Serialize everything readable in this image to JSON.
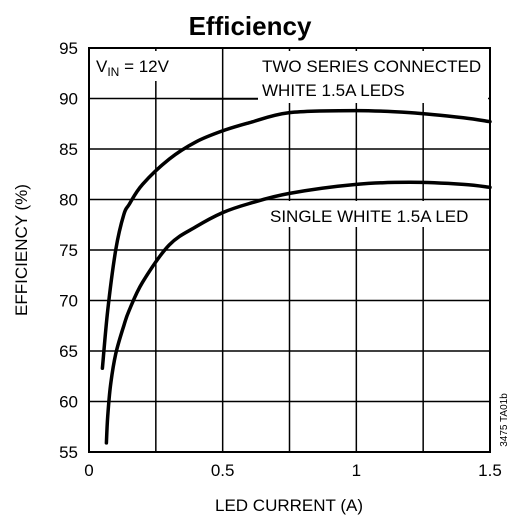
{
  "chart_data": {
    "type": "line",
    "title": "Efficiency",
    "xlabel": "LED CURRENT (A)",
    "ylabel": "EFFICIENCY (%)",
    "xlim": [
      0,
      1.5
    ],
    "ylim": [
      55,
      95
    ],
    "x_ticks": [
      "0",
      "0.5",
      "1",
      "1.5"
    ],
    "y_ticks": [
      "55",
      "60",
      "65",
      "70",
      "75",
      "80",
      "85",
      "90",
      "95"
    ],
    "x_tick_values": [
      0,
      0.5,
      1,
      1.5
    ],
    "y_tick_values": [
      55,
      60,
      65,
      70,
      75,
      80,
      85,
      90,
      95
    ],
    "grid": true,
    "vin_label": {
      "prefix": "V",
      "subscript": "IN",
      "suffix": " = 12V"
    },
    "series": [
      {
        "name": "TWO SERIES CONNECTED WHITE 1.5A LEDS",
        "label_lines": [
          "TWO SERIES CONNECTED",
          "WHITE 1.5A LEDS"
        ],
        "x": [
          0.05,
          0.07,
          0.1,
          0.13,
          0.15,
          0.2,
          0.3,
          0.4,
          0.5,
          0.6,
          0.75,
          1.0,
          1.2,
          1.4,
          1.5
        ],
        "y": [
          63.3,
          69.0,
          75.0,
          78.5,
          79.5,
          81.5,
          84.0,
          85.7,
          86.8,
          87.6,
          88.6,
          88.8,
          88.6,
          88.1,
          87.7
        ]
      },
      {
        "name": "SINGLE WHITE 1.5A LED",
        "label_lines": [
          "SINGLE WHITE 1.5A LED"
        ],
        "x": [
          0.065,
          0.07,
          0.08,
          0.1,
          0.13,
          0.15,
          0.2,
          0.3,
          0.4,
          0.5,
          0.6,
          0.75,
          1.0,
          1.2,
          1.4,
          1.5
        ],
        "y": [
          55.9,
          58.5,
          61.5,
          64.7,
          67.5,
          69.0,
          71.8,
          75.5,
          77.3,
          78.7,
          79.6,
          80.6,
          81.5,
          81.7,
          81.5,
          81.2
        ]
      }
    ],
    "side_code": "3475 TA01b"
  }
}
